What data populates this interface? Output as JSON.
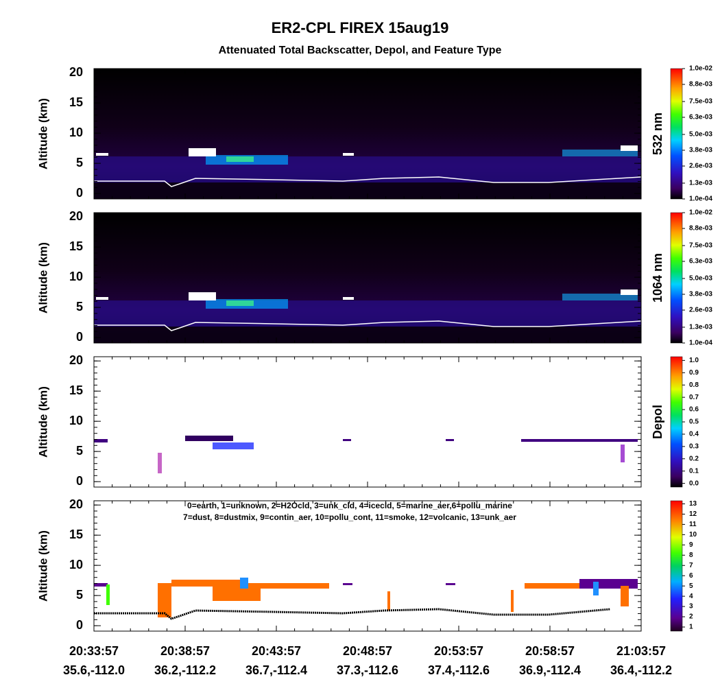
{
  "chart_data": [
    {
      "type": "heatmap",
      "title": "ER2-CPL FIREX 15aug19",
      "subtitle": "Attenuated Total Backscatter, Depol, and Feature Type",
      "ylabel": "Altitude (km)",
      "ylim": [
        -0.9,
        20.7
      ],
      "yticks": [
        0,
        5,
        10,
        15,
        20
      ],
      "colorbar_label": "532 nm",
      "colormap": "rainbow",
      "clim": [
        0.0001,
        0.01
      ],
      "cticks": [
        {
          "value": 0.0001,
          "label": "1.0e-04"
        },
        {
          "value": 0.0013,
          "label": "1.3e-03"
        },
        {
          "value": 0.0026,
          "label": "2.6e-03"
        },
        {
          "value": 0.0038,
          "label": "3.8e-03"
        },
        {
          "value": 0.005,
          "label": "5.0e-03"
        },
        {
          "value": 0.0063,
          "label": "6.3e-03"
        },
        {
          "value": 0.0075,
          "label": "7.5e-03"
        },
        {
          "value": 0.0088,
          "label": "8.8e-03"
        },
        {
          "value": 0.01,
          "label": "1.0e-02"
        }
      ]
    },
    {
      "type": "heatmap",
      "ylabel": "Altitude (km)",
      "ylim": [
        -0.9,
        20.7
      ],
      "yticks": [
        0,
        5,
        10,
        15,
        20
      ],
      "colorbar_label": "1064 nm",
      "colormap": "rainbow",
      "clim": [
        0.0001,
        0.01
      ],
      "cticks": [
        {
          "value": 0.0001,
          "label": "1.0e-04"
        },
        {
          "value": 0.0013,
          "label": "1.3e-03"
        },
        {
          "value": 0.0026,
          "label": "2.6e-03"
        },
        {
          "value": 0.0038,
          "label": "3.8e-03"
        },
        {
          "value": 0.005,
          "label": "5.0e-03"
        },
        {
          "value": 0.0063,
          "label": "6.3e-03"
        },
        {
          "value": 0.0075,
          "label": "7.5e-03"
        },
        {
          "value": 0.0088,
          "label": "8.8e-03"
        },
        {
          "value": 0.01,
          "label": "1.0e-02"
        }
      ]
    },
    {
      "type": "heatmap",
      "ylabel": "Altitude (km)",
      "ylim": [
        -0.9,
        20.7
      ],
      "yticks": [
        0,
        5,
        10,
        15,
        20
      ],
      "colorbar_label": "Depol",
      "colormap": "rainbow",
      "clim": [
        -0.03,
        1.03
      ],
      "cticks": [
        {
          "value": 0,
          "label": "0.0"
        },
        0.1,
        0.2,
        0.3,
        0.4,
        0.5,
        0.6,
        0.7,
        0.8,
        0.9,
        {
          "value": 1,
          "label": "1.0"
        }
      ]
    },
    {
      "type": "heatmap",
      "ylabel": "Altitude (km)",
      "ylim": [
        -0.9,
        20.7
      ],
      "yticks": [
        0,
        5,
        10,
        15,
        20
      ],
      "colormap": "feature",
      "clim": [
        0.6,
        13.3
      ],
      "cticks": [
        1,
        2,
        3,
        4,
        5,
        6,
        7,
        8,
        9,
        10,
        11,
        12,
        13
      ],
      "annotations": [
        "0=earth, 1=unknown, 2=H2Ocld, 3=unk_cld, 4=icecld, 5=marine_aer,6=pollu_marine",
        "7=dust, 8=dustmix, 9=contin_aer, 10=pollu_cont, 11=smoke, 12=volcanic, 13=unk_aer"
      ],
      "categories": [
        "20:33:57",
        "20:38:57",
        "20:43:57",
        "20:48:57",
        "20:53:57",
        "20:58:57",
        "21:03:57"
      ],
      "category_positions": [
        "35.6,-112.0",
        "36.2,-112.2",
        "36.7,-112.4",
        "37.3,-112.6",
        "37.4,-112.6",
        "36.9,-112.4",
        "36.4,-112.2"
      ]
    }
  ]
}
